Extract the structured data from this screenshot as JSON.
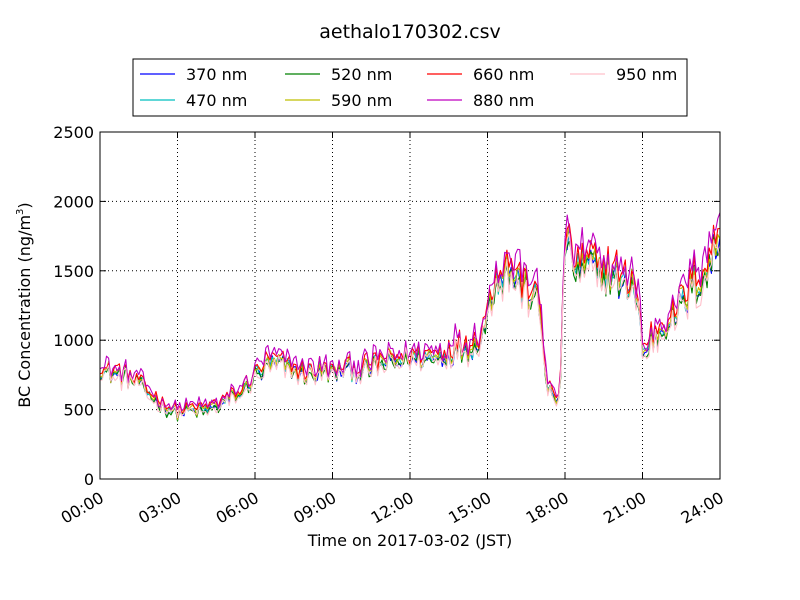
{
  "chart_data": {
    "type": "line",
    "title": "aethalo170302.csv",
    "xlabel": "Time on 2017-03-02 (JST)",
    "ylabel": "BC Concentration (ng/m",
    "ylabel_sup": "3",
    "ylabel_close": ")",
    "xlim": [
      0,
      24
    ],
    "ylim": [
      0,
      2500
    ],
    "grid": true,
    "legend_position": "top-center (above plot)",
    "x_ticks": [
      0,
      3,
      6,
      9,
      12,
      15,
      18,
      21,
      24
    ],
    "x_tick_labels": [
      "00:00",
      "03:00",
      "06:00",
      "09:00",
      "12:00",
      "15:00",
      "18:00",
      "21:00",
      "24:00"
    ],
    "y_ticks": [
      0,
      500,
      1000,
      1500,
      2000,
      2500
    ],
    "y_tick_labels": [
      "0",
      "500",
      "1000",
      "1500",
      "2000",
      "2500"
    ],
    "x_unit": "hours",
    "base_profile": {
      "x": [
        0,
        0.5,
        1,
        1.5,
        2,
        2.5,
        3,
        3.5,
        4,
        4.5,
        5,
        5.5,
        6,
        6.5,
        7,
        7.5,
        8,
        8.5,
        9,
        9.5,
        10,
        10.5,
        11,
        11.5,
        12,
        12.5,
        13,
        13.5,
        14,
        14.5,
        14.9,
        15.3,
        15.7,
        16,
        16.3,
        16.6,
        16.8,
        17,
        17.3,
        17.6,
        17.8,
        17.9,
        18,
        18.3,
        18.6,
        19,
        19.3,
        19.6,
        20,
        20.3,
        20.6,
        20.9,
        21,
        21.3,
        21.6,
        22,
        22.5,
        23,
        23.5,
        24
      ],
      "y": [
        780,
        760,
        740,
        680,
        600,
        520,
        480,
        500,
        490,
        520,
        580,
        620,
        750,
        820,
        820,
        780,
        760,
        780,
        760,
        800,
        780,
        800,
        840,
        850,
        880,
        870,
        880,
        920,
        950,
        960,
        1100,
        1450,
        1520,
        1480,
        1400,
        1350,
        1300,
        1250,
        700,
        550,
        600,
        1100,
        1750,
        1550,
        1520,
        1550,
        1480,
        1500,
        1450,
        1380,
        1450,
        1200,
        880,
        1000,
        1050,
        1150,
        1250,
        1400,
        1500,
        1750
      ]
    },
    "series": [
      {
        "name": "370 nm",
        "color": "#0000ff",
        "scale": 0.99
      },
      {
        "name": "470 nm",
        "color": "#00bfbf",
        "scale": 1.0
      },
      {
        "name": "520 nm",
        "color": "#008000",
        "scale": 0.985
      },
      {
        "name": "590 nm",
        "color": "#bfbf00",
        "scale": 1.01
      },
      {
        "name": "660 nm",
        "color": "#ff0000",
        "scale": 1.04
      },
      {
        "name": "880 nm",
        "color": "#bf00bf",
        "scale": 1.07
      },
      {
        "name": "950 nm",
        "color": "#ffc0cb",
        "scale": 0.97
      }
    ]
  }
}
